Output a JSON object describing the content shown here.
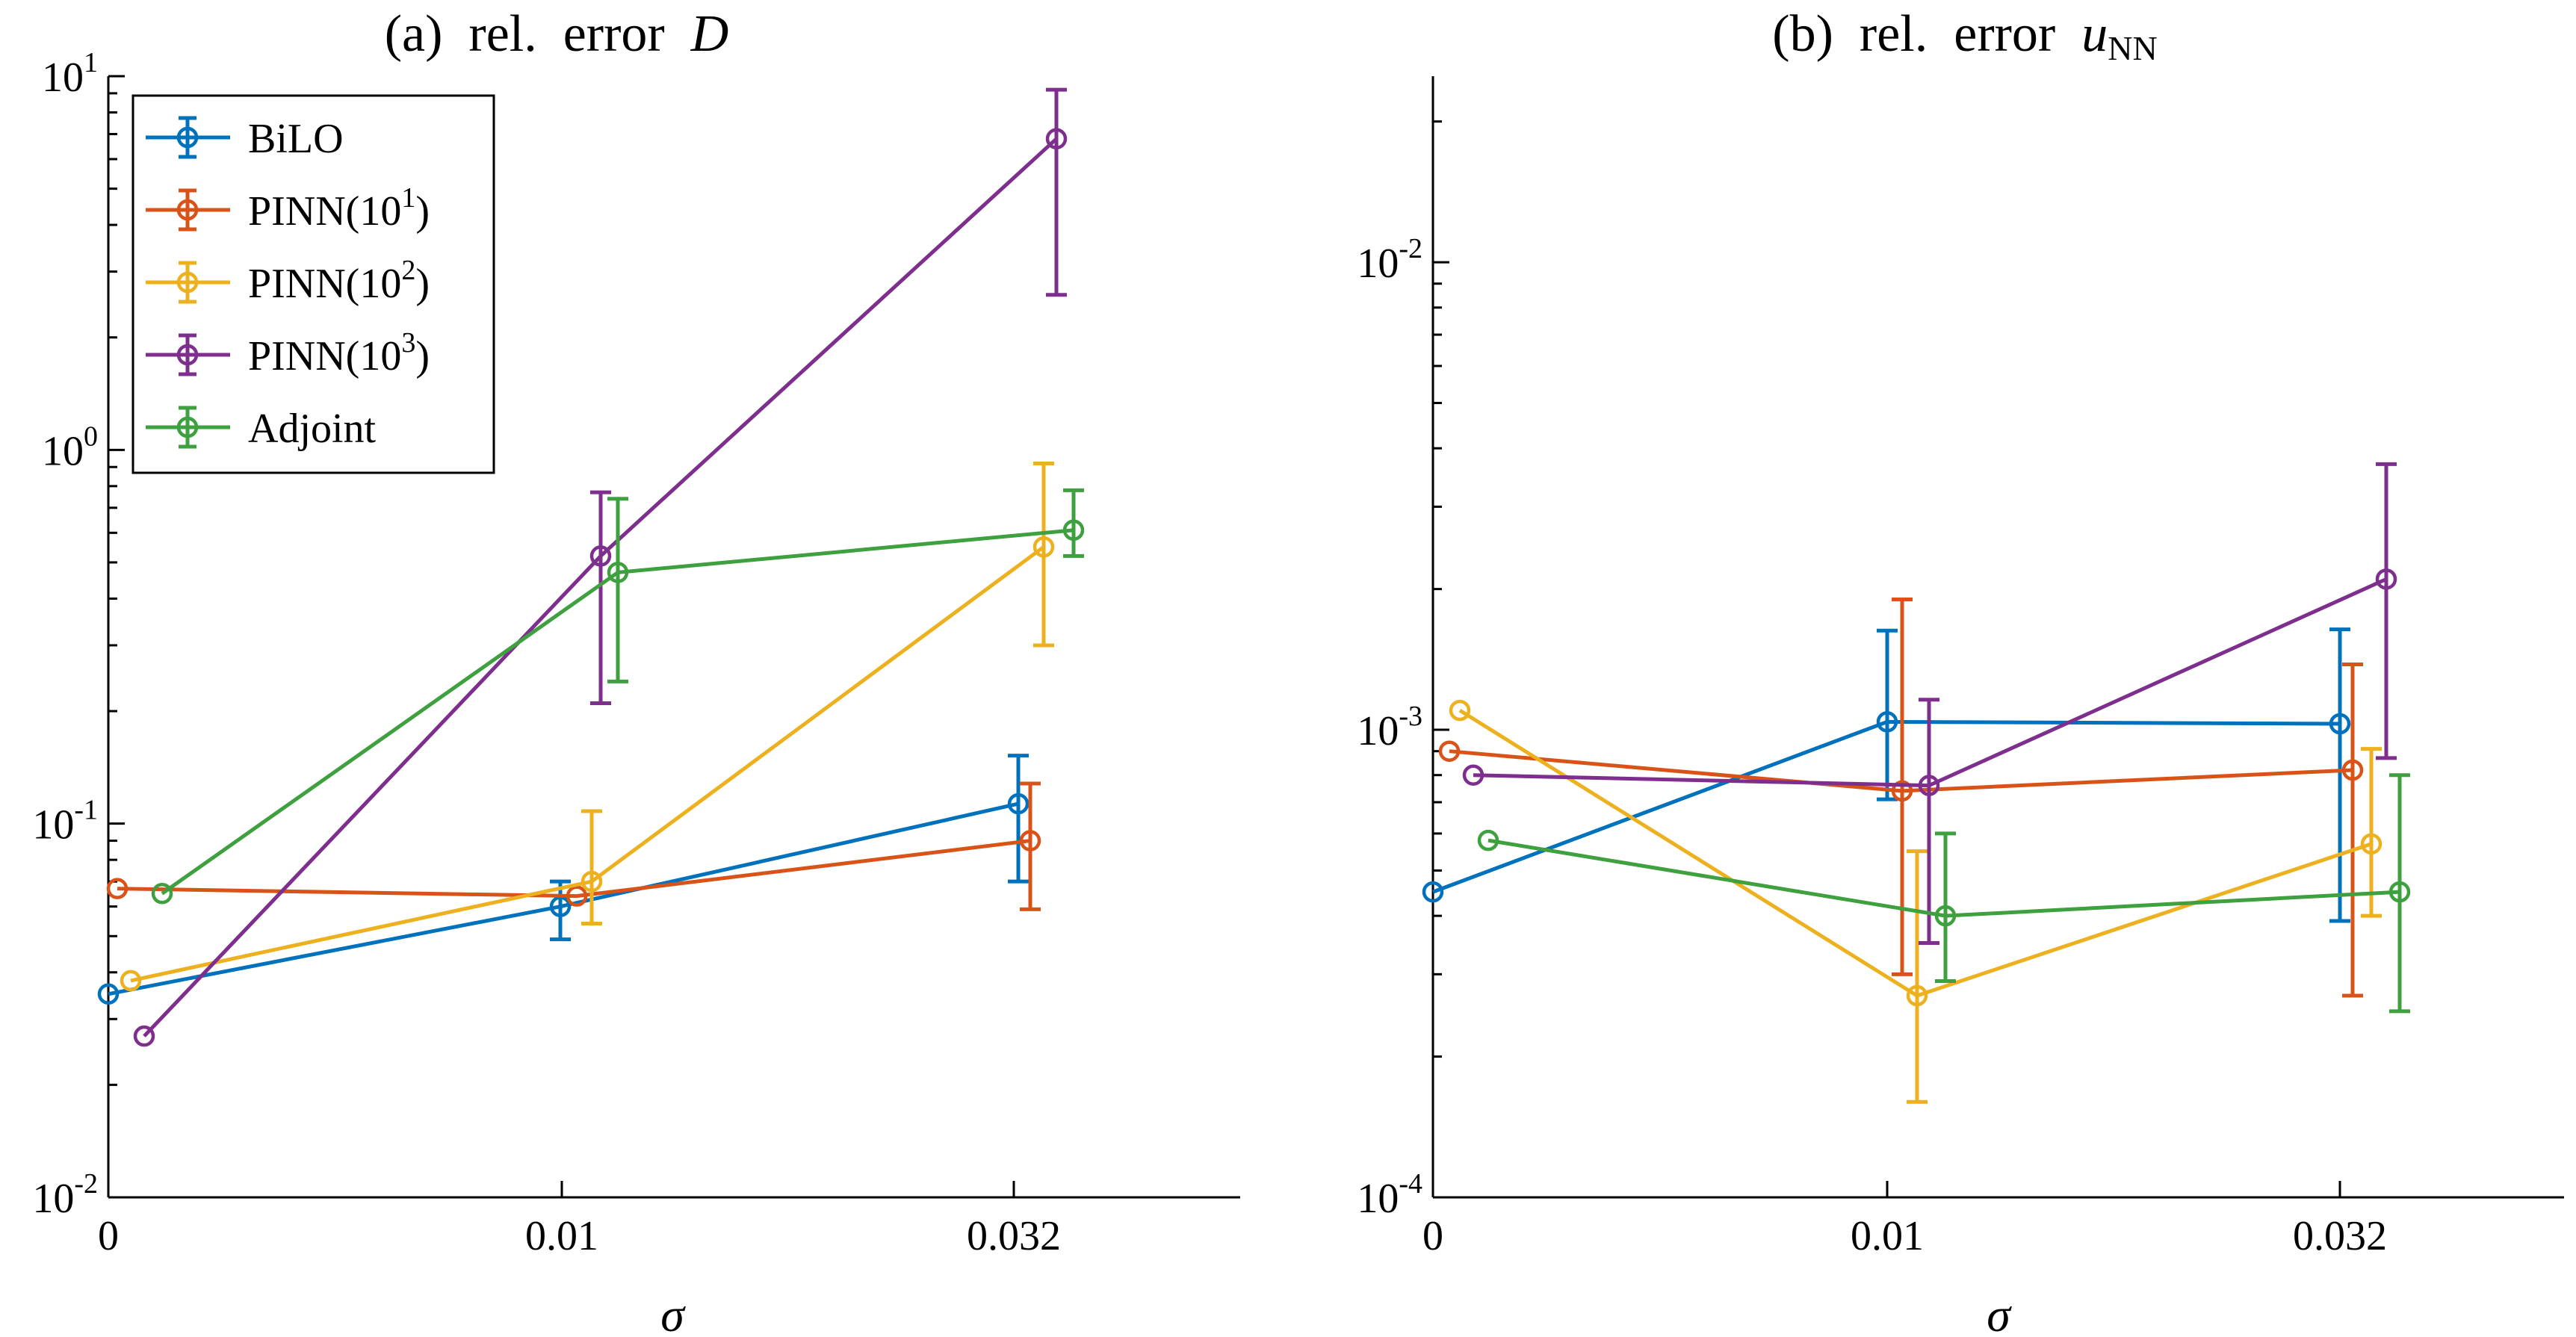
{
  "chart_data": [
    {
      "type": "line",
      "title_prefix": "(a)  rel.  error  ",
      "title_var": "D",
      "xlabel": "σ",
      "ylabel": "",
      "yscale": "log",
      "ylim": [
        0.01,
        10
      ],
      "x_tick_labels": [
        "0",
        "0.01",
        "0.032"
      ],
      "y_tick_labels": [
        {
          "base": "10",
          "exp": "1"
        },
        {
          "base": "10",
          "exp": "0"
        },
        {
          "base": "10",
          "exp": "-1"
        },
        {
          "base": "10",
          "exp": "-2"
        }
      ],
      "legend_position": "top-left",
      "series": [
        {
          "name": "BiLO",
          "name_sup": "",
          "name_suffix": "",
          "color": "#0072BD",
          "x": [
            0,
            1,
            2
          ],
          "y": [
            0.035,
            0.06,
            0.113
          ],
          "err_low": [
            null,
            0.049,
            0.07
          ],
          "err_high": [
            null,
            0.07,
            0.152
          ]
        },
        {
          "name": "PINN(10",
          "name_sup": "1",
          "name_suffix": ")",
          "color": "#D95319",
          "x": [
            0,
            1,
            2
          ],
          "y": [
            0.067,
            0.064,
            0.09
          ],
          "err_low": [
            null,
            null,
            0.059
          ],
          "err_high": [
            null,
            null,
            0.128
          ]
        },
        {
          "name": "PINN(10",
          "name_sup": "2",
          "name_suffix": ")",
          "color": "#EDB120",
          "x": [
            0,
            1,
            2
          ],
          "y": [
            0.038,
            0.07,
            0.55
          ],
          "err_low": [
            null,
            0.054,
            0.3
          ],
          "err_high": [
            null,
            0.108,
            0.92
          ]
        },
        {
          "name": "PINN(10",
          "name_sup": "3",
          "name_suffix": ")",
          "color": "#7E2F8E",
          "x": [
            0,
            1,
            2
          ],
          "y": [
            0.027,
            0.52,
            6.8
          ],
          "err_low": [
            null,
            0.21,
            2.6
          ],
          "err_high": [
            null,
            0.77,
            9.2
          ]
        },
        {
          "name": "Adjoint",
          "name_sup": "",
          "name_suffix": "",
          "color": "#3EA03E",
          "x": [
            0,
            1,
            2
          ],
          "y": [
            0.065,
            0.47,
            0.61
          ],
          "err_low": [
            null,
            0.24,
            0.52
          ],
          "err_high": [
            null,
            0.74,
            0.78
          ]
        }
      ]
    },
    {
      "type": "line",
      "title_prefix": "(b)  rel.  error  ",
      "title_var": "u",
      "title_sub": "NN",
      "xlabel": "σ",
      "ylabel": "",
      "yscale": "log",
      "ylim": [
        0.0001,
        0.025
      ],
      "x_tick_labels": [
        "0",
        "0.01",
        "0.032"
      ],
      "y_tick_labels": [
        {
          "base": "10",
          "exp": "-2"
        },
        {
          "base": "10",
          "exp": "-3"
        },
        {
          "base": "10",
          "exp": "-4"
        }
      ],
      "series": [
        {
          "name": "BiLO",
          "color": "#0072BD",
          "x": [
            0,
            1,
            2
          ],
          "y": [
            0.00045,
            0.00104,
            0.00103
          ],
          "err_low": [
            null,
            0.00071,
            0.00039
          ],
          "err_high": [
            null,
            0.00163,
            0.00164
          ]
        },
        {
          "name": "PINN(10^1)",
          "color": "#D95319",
          "x": [
            0,
            1,
            2
          ],
          "y": [
            0.0009,
            0.00074,
            0.00082
          ],
          "err_low": [
            null,
            0.0003,
            0.00027
          ],
          "err_high": [
            null,
            0.0019,
            0.00138
          ]
        },
        {
          "name": "PINN(10^2)",
          "color": "#EDB120",
          "x": [
            0,
            1,
            2
          ],
          "y": [
            0.0011,
            0.00027,
            0.00057
          ],
          "err_low": [
            null,
            0.00016,
            0.0004
          ],
          "err_high": [
            null,
            0.00055,
            0.00091
          ]
        },
        {
          "name": "PINN(10^3)",
          "color": "#7E2F8E",
          "x": [
            0,
            1,
            2
          ],
          "y": [
            0.0008,
            0.00076,
            0.0021
          ],
          "err_low": [
            null,
            0.00035,
            0.00087
          ],
          "err_high": [
            null,
            0.00116,
            0.0037
          ]
        },
        {
          "name": "Adjoint",
          "color": "#3EA03E",
          "x": [
            0,
            1,
            2
          ],
          "y": [
            0.00058,
            0.0004,
            0.00045
          ],
          "err_low": [
            null,
            0.00029,
            0.00025
          ],
          "err_high": [
            null,
            0.0006,
            0.0008
          ]
        }
      ]
    }
  ]
}
